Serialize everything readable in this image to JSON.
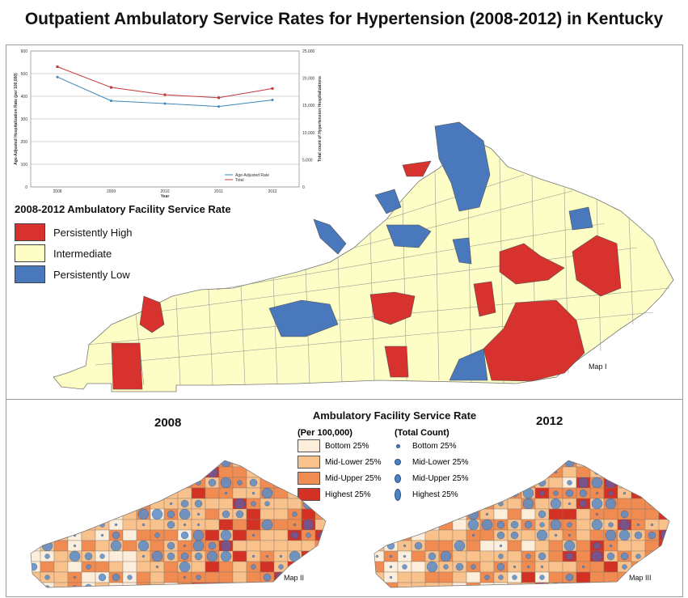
{
  "title": "Outpatient Ambulatory Service Rates for Hypertension (2008-2012) in Kentucky",
  "colors": {
    "persistently_high": "#d7322d",
    "intermediate": "#fdfdc6",
    "persistently_low": "#4a78bc",
    "bottom25": "#fdeedc",
    "midlower25": "#f9c18b",
    "midupper25": "#f08b52",
    "highest25": "#d33124",
    "dot": "#5a8cc8"
  },
  "chart_data": {
    "type": "line",
    "x": [
      "2008",
      "2009",
      "2010",
      "2011",
      "2012"
    ],
    "xlabel": "Year",
    "ylabel": "Age-Adjusted Hospitalization Rate (per 100,000)",
    "y2label": "Total count of Hypertension Hospitalizations",
    "ylim": [
      0,
      600
    ],
    "y2lim": [
      0,
      25000
    ],
    "yticks": [
      "0",
      "100",
      "200",
      "300",
      "400",
      "500",
      "600"
    ],
    "y2ticks": [
      "0",
      "5,000",
      "10,000",
      "15,000",
      "20,000",
      "25,000"
    ],
    "grid": true,
    "legend_position": "bottom-right",
    "series": [
      {
        "name": "Age-Adjusted Rate",
        "axis": "left",
        "color": "#3d86b8",
        "values": [
          485,
          380,
          368,
          355,
          384
        ]
      },
      {
        "name": "Total",
        "axis": "right",
        "color": "#c0393a",
        "values": [
          22100,
          18300,
          16950,
          16400,
          18100
        ]
      }
    ]
  },
  "map1": {
    "legend_title": "2008-2012 Ambulatory Facility Service Rate",
    "legend_items": [
      {
        "label": "Persistently High",
        "key": "persistently_high"
      },
      {
        "label": "Intermediate",
        "key": "intermediate"
      },
      {
        "label": "Persistently Low",
        "key": "persistently_low"
      }
    ],
    "label": "Map I"
  },
  "map2": {
    "year": "2008",
    "label": "Map II"
  },
  "map3": {
    "year": "2012",
    "label": "Map III"
  },
  "legend2": {
    "title": "Ambulatory Facility Service Rate",
    "sub_rate": "(Per 100,000)",
    "sub_count": "(Total Count)",
    "rate_items": [
      "Bottom 25%",
      "Mid-Lower 25%",
      "Mid-Upper 25%",
      "Highest 25%"
    ],
    "count_items": [
      "Bottom 25%",
      "Mid-Lower 25%",
      "Mid-Upper 25%",
      "Highest 25%"
    ]
  }
}
